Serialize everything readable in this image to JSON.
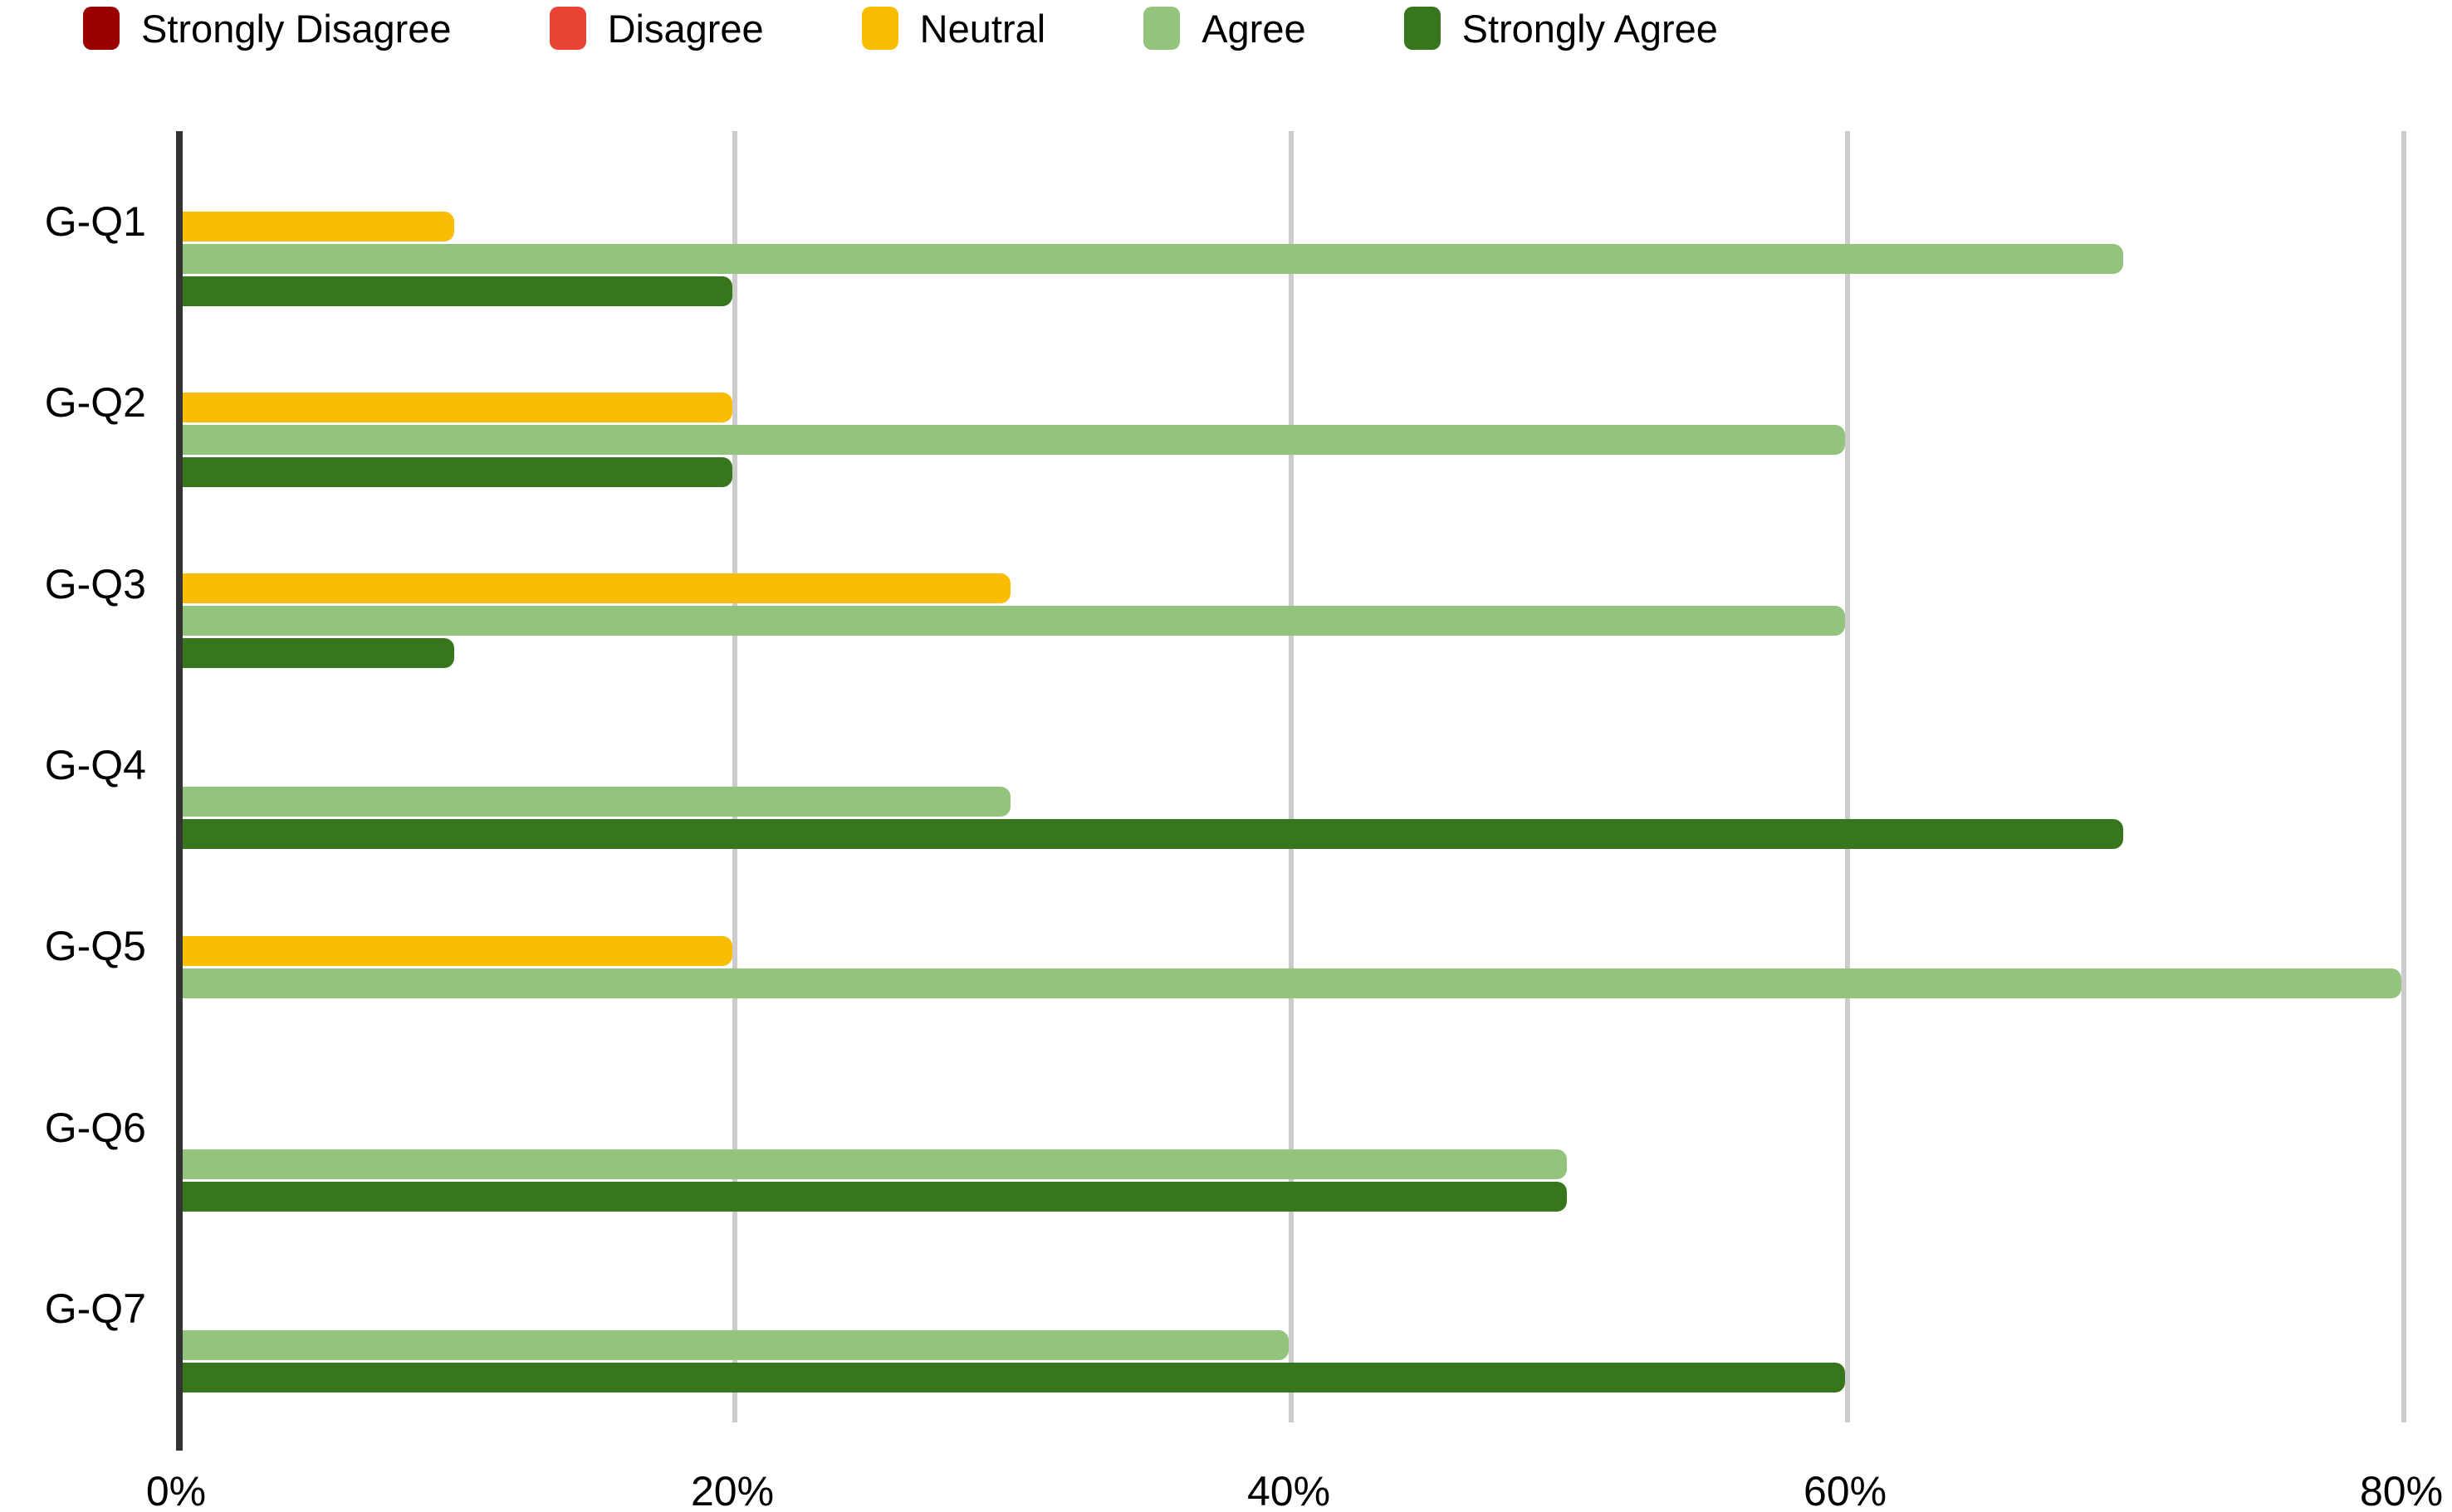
{
  "chart_data": {
    "type": "bar",
    "orientation": "horizontal",
    "title": "",
    "xlabel": "",
    "ylabel": "",
    "categories": [
      "G-Q1",
      "G-Q2",
      "G-Q3",
      "G-Q4",
      "G-Q5",
      "G-Q6",
      "G-Q7"
    ],
    "series": [
      {
        "name": "Strongly Disagree",
        "color": "#990000",
        "values": [
          0,
          0,
          0,
          0,
          0,
          0,
          0
        ]
      },
      {
        "name": "Disagree",
        "color": "#e84335",
        "values": [
          0,
          0,
          0,
          0,
          0,
          0,
          0
        ]
      },
      {
        "name": "Neutral",
        "color": "#fbbc04",
        "values": [
          10,
          20,
          30,
          0,
          20,
          0,
          0
        ]
      },
      {
        "name": "Agree",
        "color": "#93c47d",
        "values": [
          70,
          60,
          60,
          30,
          80,
          50,
          40
        ]
      },
      {
        "name": "Strongly Agree",
        "color": "#38761d",
        "values": [
          20,
          20,
          10,
          70,
          0,
          50,
          60
        ]
      }
    ],
    "value_unit": "%",
    "xlim": [
      0,
      80
    ],
    "x_ticks": [
      {
        "value": 0,
        "label": "0%"
      },
      {
        "value": 20,
        "label": "20%"
      },
      {
        "value": 40,
        "label": "40%"
      },
      {
        "value": 60,
        "label": "60%"
      },
      {
        "value": 80,
        "label": "80%"
      }
    ],
    "grid": "vertical-gridlines-on",
    "legend_position": "top",
    "colors": {
      "axis_line": "#333333",
      "gridline": "#cccccc",
      "text": "#000000",
      "background": "#ffffff"
    }
  }
}
